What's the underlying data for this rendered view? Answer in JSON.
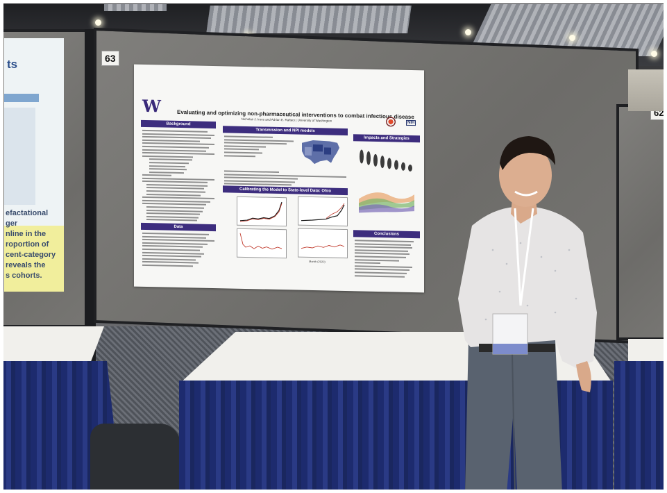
{
  "booths": {
    "current_number": "63",
    "next_number": "62"
  },
  "left_poster": {
    "title_fragment": "ts",
    "text_lines": [
      "efactational",
      "ger",
      "nline in the",
      "roportion of",
      "cent-category",
      "reveals the",
      "s cohorts."
    ]
  },
  "poster": {
    "logo": "W",
    "title": "Evaluating and optimizing non-pharmaceutical interventions to combat infectious disease",
    "authors": "Nicholas J. Irons and Adrian E. Raftery | University of Washington",
    "funder_logo": "NIH",
    "sections": {
      "background": "Background",
      "transmission": "Transmission and NPI models",
      "impacts": "Impacts and Strategies",
      "calibrating": "Calibrating the Model to State-level Data: Ohio",
      "data": "Data",
      "conclusions": "Conclusions"
    },
    "axis_label": "Month (2020)"
  },
  "colors": {
    "section_header": "#3d2d7e",
    "skirt": "#1d2b6e",
    "curve_red": "#c0392b",
    "curve_black": "#1a1a1a"
  }
}
